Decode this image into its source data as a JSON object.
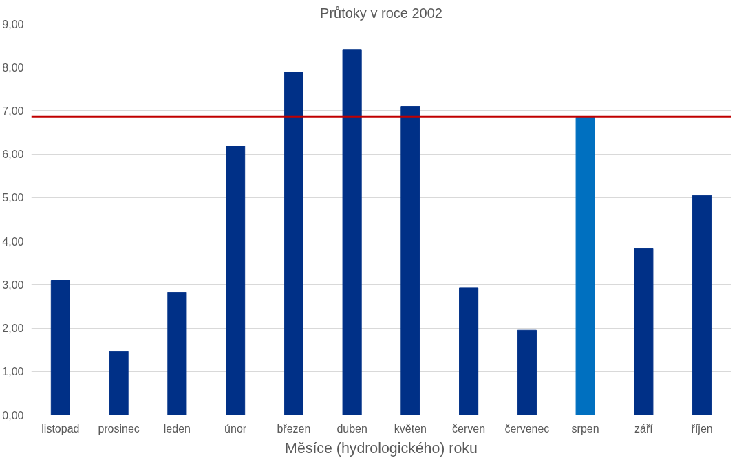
{
  "chart_data": {
    "type": "bar",
    "title": "Průtoky v roce 2002",
    "xlabel": "Měsíce (hydrologického) roku",
    "categories": [
      "listopad",
      "prosinec",
      "leden",
      "únor",
      "březen",
      "duben",
      "květen",
      "červen",
      "červenec",
      "srpen",
      "září",
      "říjen"
    ],
    "values": [
      3.1,
      1.46,
      2.82,
      6.18,
      7.89,
      8.41,
      7.1,
      2.92,
      1.95,
      6.85,
      3.83,
      5.05
    ],
    "colors": [
      "#003087",
      "#003087",
      "#003087",
      "#003087",
      "#003087",
      "#003087",
      "#003087",
      "#003087",
      "#003087",
      "#0070c0",
      "#003087",
      "#003087"
    ],
    "ylim": [
      0,
      9
    ],
    "yticks": [
      {
        "value": 0,
        "label": "0,00"
      },
      {
        "value": 1,
        "label": "1,00"
      },
      {
        "value": 2,
        "label": "2,00"
      },
      {
        "value": 3,
        "label": "3,00"
      },
      {
        "value": 4,
        "label": "4,00"
      },
      {
        "value": 5,
        "label": "5,00"
      },
      {
        "value": 6,
        "label": "6,00"
      },
      {
        "value": 7,
        "label": "7,00"
      },
      {
        "value": 8,
        "label": "8,00"
      },
      {
        "value": 9,
        "label": "9,00"
      }
    ],
    "ref_lines": [
      {
        "axis": "y",
        "value": 6.87,
        "color": "#c00000"
      }
    ],
    "grid": "y"
  }
}
